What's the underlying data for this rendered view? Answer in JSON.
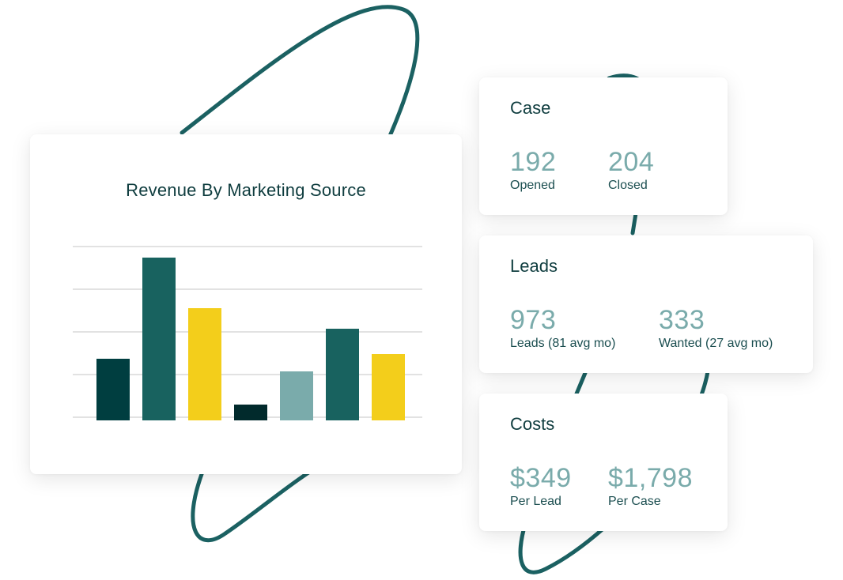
{
  "colors": {
    "dark_teal": "#003e40",
    "teal": "#18625f",
    "yellow": "#f3ce1b",
    "darkest": "#012a2c",
    "light_teal": "#7aabab",
    "orbit": "#1b6162",
    "grid": "#e2e2e2",
    "heading": "#0f3d3f",
    "stat_value": "#7aabab"
  },
  "chart_data": {
    "type": "bar",
    "title": "Revenue By Marketing Source",
    "categories": [
      "",
      "",
      "",
      "",
      "",
      "",
      ""
    ],
    "values": [
      74,
      202,
      138,
      16,
      58,
      112,
      80
    ],
    "bar_colors": [
      "#003e40",
      "#18625f",
      "#f3ce1b",
      "#012a2c",
      "#7aabab",
      "#18625f",
      "#f3ce1b"
    ],
    "ylim": [
      0,
      216
    ],
    "gridlines": [
      0,
      54,
      108,
      162,
      216
    ],
    "grid": true,
    "xlabel": "",
    "ylabel": ""
  },
  "cards": {
    "case": {
      "title": "Case",
      "stats": [
        {
          "value": "192",
          "label": "Opened"
        },
        {
          "value": "204",
          "label": "Closed"
        }
      ]
    },
    "leads": {
      "title": "Leads",
      "stats": [
        {
          "value": "973",
          "label": "Leads (81 avg mo)"
        },
        {
          "value": "333",
          "label": "Wanted (27 avg mo)"
        }
      ]
    },
    "costs": {
      "title": "Costs",
      "stats": [
        {
          "value": "$349",
          "label": "Per Lead"
        },
        {
          "value": "$1,798",
          "label": "Per Case"
        }
      ]
    }
  }
}
